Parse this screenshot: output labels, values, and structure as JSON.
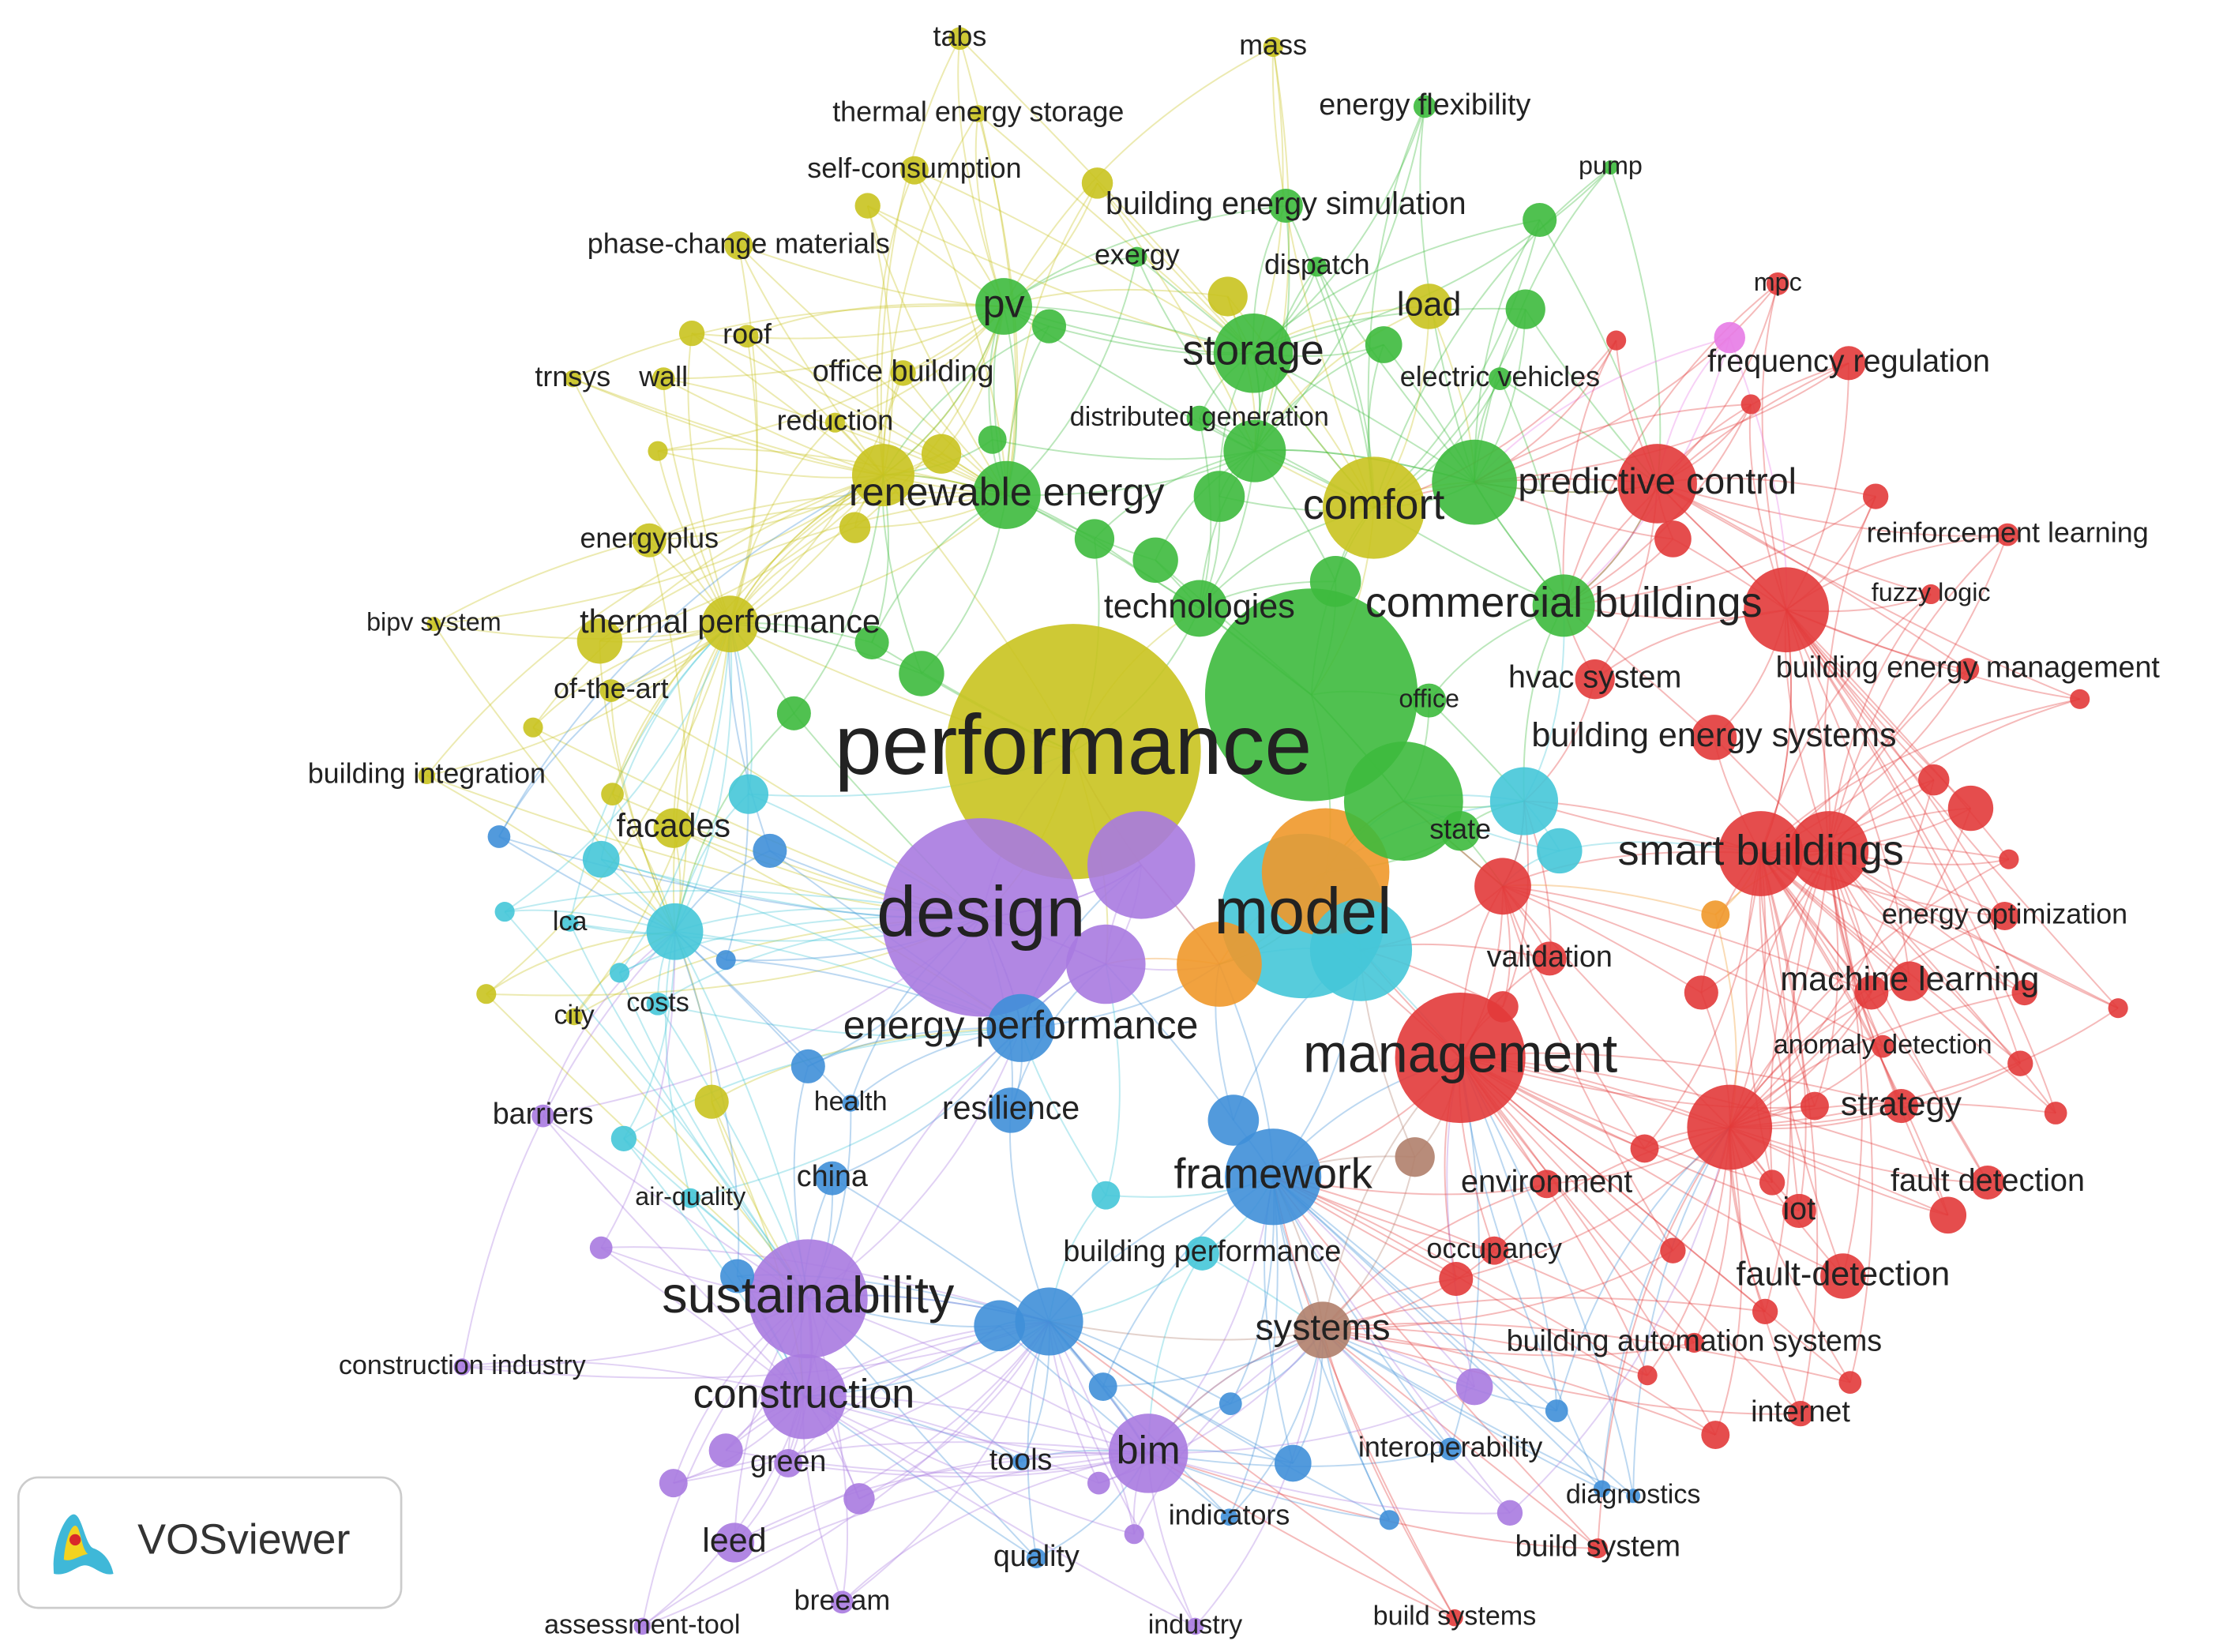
{
  "clusters": [
    {
      "color": "#c9c31f"
    },
    {
      "color": "#3dba3d"
    },
    {
      "color": "#45c6d8"
    },
    {
      "color": "#3f8fd8"
    },
    {
      "color": "#a97ae0"
    },
    {
      "color": "#e23a3a"
    },
    {
      "color": "#b07f6c"
    },
    {
      "color": "#e77be6"
    },
    {
      "color": "#f0982a"
    }
  ],
  "nodes": [
    {
      "label": "tabs",
      "cluster": 0
    },
    {
      "label": "mass",
      "cluster": 0
    },
    {
      "label": "thermal energy storage",
      "cluster": 0
    },
    {
      "label": "self-consumption",
      "cluster": 0
    },
    {
      "label": "phase-change materials",
      "cluster": 0
    },
    {
      "label": "roof",
      "cluster": 0
    },
    {
      "label": "trnsys",
      "cluster": 0
    },
    {
      "label": "wall",
      "cluster": 0
    },
    {
      "label": "office building",
      "cluster": 0
    },
    {
      "label": "reduction",
      "cluster": 0
    },
    {
      "label": "energyplus",
      "cluster": 0
    },
    {
      "label": "bipv system",
      "cluster": 0
    },
    {
      "label": "thermal performance",
      "cluster": 0
    },
    {
      "label": "of-the-art",
      "cluster": 0
    },
    {
      "label": "building integration",
      "cluster": 0
    },
    {
      "label": "facades",
      "cluster": 0
    },
    {
      "label": "comfort",
      "cluster": 0
    },
    {
      "label": "load",
      "cluster": 0
    },
    {
      "label": "city",
      "cluster": 0
    },
    {
      "label": "energy flexibility",
      "cluster": 1
    },
    {
      "label": "building energy simulation",
      "cluster": 1
    },
    {
      "label": "pump",
      "cluster": 1
    },
    {
      "label": "exergy",
      "cluster": 1
    },
    {
      "label": "dispatch",
      "cluster": 1
    },
    {
      "label": "pv",
      "cluster": 1
    },
    {
      "label": "storage",
      "cluster": 1
    },
    {
      "label": "electric vehicles",
      "cluster": 1
    },
    {
      "label": "distributed generation",
      "cluster": 1
    },
    {
      "label": "renewable energy",
      "cluster": 1
    },
    {
      "label": "technologies",
      "cluster": 1
    },
    {
      "label": "commercial buildings",
      "cluster": 1
    },
    {
      "label": "office",
      "cluster": 1
    },
    {
      "label": "state",
      "cluster": 1
    },
    {
      "label": "lca",
      "cluster": 2
    },
    {
      "label": "costs",
      "cluster": 2
    },
    {
      "label": "model",
      "cluster": 2
    },
    {
      "label": "air-quality",
      "cluster": 2
    },
    {
      "label": "building performance",
      "cluster": 2
    },
    {
      "label": "energy performance",
      "cluster": 3
    },
    {
      "label": "resilience",
      "cluster": 3
    },
    {
      "label": "health",
      "cluster": 3
    },
    {
      "label": "china",
      "cluster": 3
    },
    {
      "label": "framework",
      "cluster": 3
    },
    {
      "label": "bim",
      "cluster": 4
    },
    {
      "label": "tools",
      "cluster": 3
    },
    {
      "label": "quality",
      "cluster": 3
    },
    {
      "label": "interoperability",
      "cluster": 3
    },
    {
      "label": "diagnostics",
      "cluster": 3
    },
    {
      "label": "indicators",
      "cluster": 3
    },
    {
      "label": "design",
      "cluster": 4
    },
    {
      "label": "barriers",
      "cluster": 4
    },
    {
      "label": "sustainability",
      "cluster": 4
    },
    {
      "label": "construction industry",
      "cluster": 4
    },
    {
      "label": "construction",
      "cluster": 4
    },
    {
      "label": "green",
      "cluster": 4
    },
    {
      "label": "leed",
      "cluster": 4
    },
    {
      "label": "breeam",
      "cluster": 4
    },
    {
      "label": "assessment-tool",
      "cluster": 4
    },
    {
      "label": "industry",
      "cluster": 4
    },
    {
      "label": "mpc",
      "cluster": 5
    },
    {
      "label": "frequency regulation",
      "cluster": 5
    },
    {
      "label": "predictive control",
      "cluster": 5
    },
    {
      "label": "reinforcement learning",
      "cluster": 5
    },
    {
      "label": "fuzzy logic",
      "cluster": 5
    },
    {
      "label": "hvac system",
      "cluster": 5
    },
    {
      "label": "building energy management",
      "cluster": 5
    },
    {
      "label": "building energy systems",
      "cluster": 5
    },
    {
      "label": "smart buildings",
      "cluster": 5
    },
    {
      "label": "energy optimization",
      "cluster": 5
    },
    {
      "label": "validation",
      "cluster": 5
    },
    {
      "label": "machine learning",
      "cluster": 5
    },
    {
      "label": "anomaly detection",
      "cluster": 5
    },
    {
      "label": "management",
      "cluster": 5
    },
    {
      "label": "strategy",
      "cluster": 5
    },
    {
      "label": "environment",
      "cluster": 5
    },
    {
      "label": "fault detection",
      "cluster": 5
    },
    {
      "label": "iot",
      "cluster": 5
    },
    {
      "label": "occupancy",
      "cluster": 5
    },
    {
      "label": "fault-detection",
      "cluster": 5
    },
    {
      "label": "building automation systems",
      "cluster": 5
    },
    {
      "label": "internet",
      "cluster": 5
    },
    {
      "label": "build system",
      "cluster": 5
    },
    {
      "label": "build systems",
      "cluster": 5
    },
    {
      "label": "systems",
      "cluster": 6
    },
    {
      "label": "performance",
      "cluster": 0
    }
  ],
  "logo": {
    "text": "VOSviewer"
  }
}
